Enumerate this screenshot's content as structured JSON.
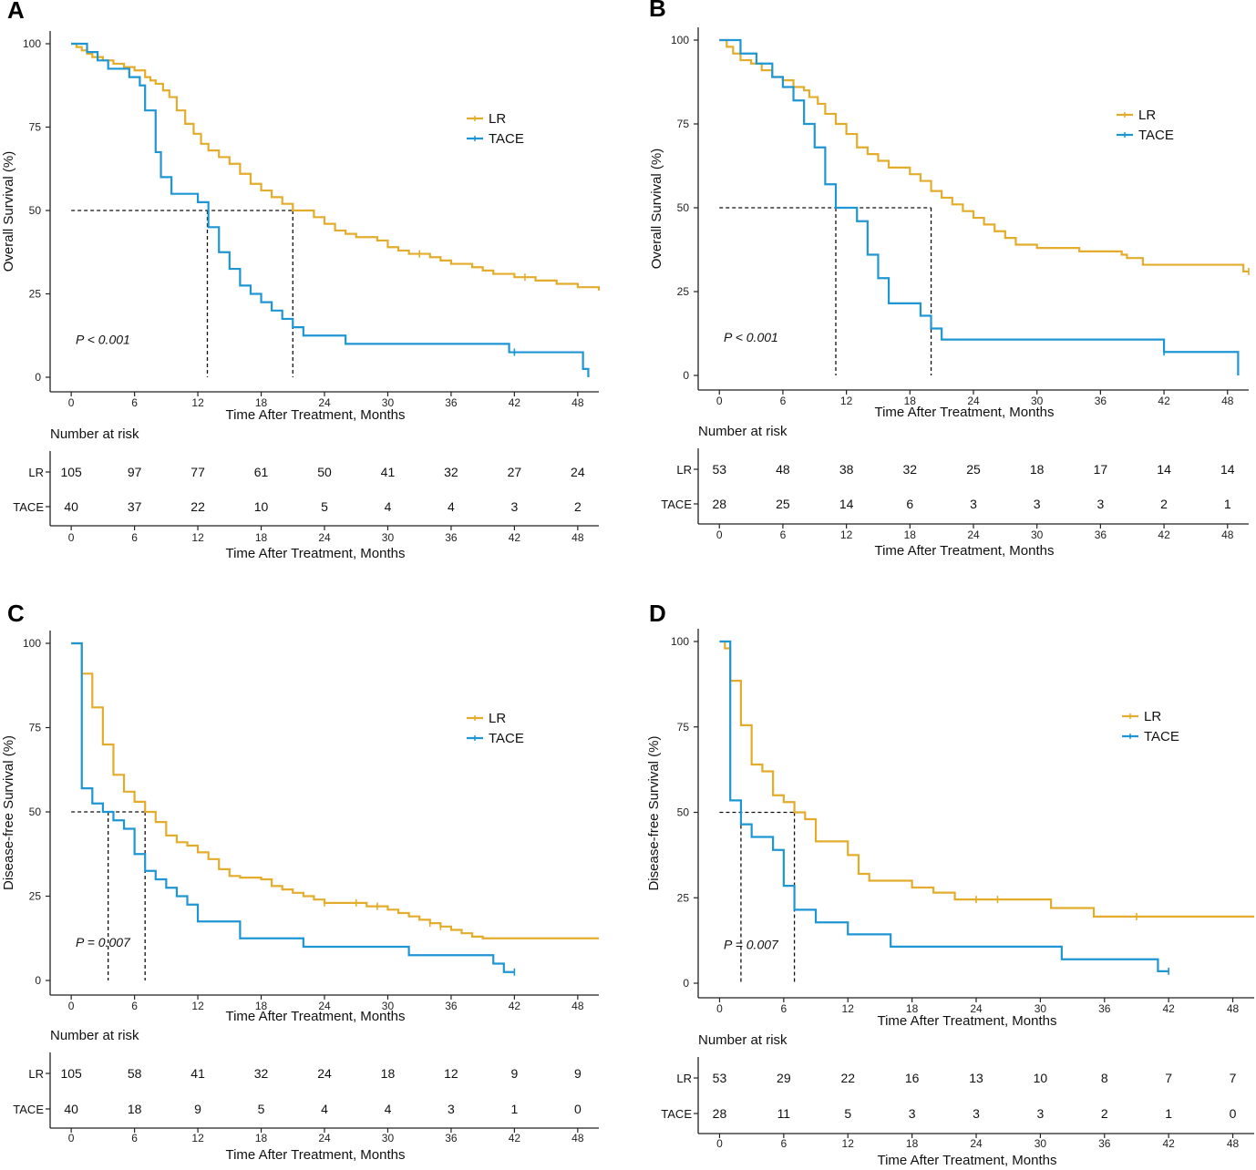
{
  "figure": {
    "colors": {
      "LR": "#E3AC2B",
      "TACE": "#1F96D4",
      "axis": "#222222",
      "dash": "#111111"
    },
    "risk_title": "Number at risk",
    "x_axis_label": "Time After Treatment, Months"
  },
  "chart_data": [
    {
      "panel": "A",
      "type": "line",
      "step": true,
      "ylabel": "Overall Survival (%)",
      "xlabel": "Time After Treatment, Months",
      "xlim": [
        -2,
        50
      ],
      "ylim": [
        0,
        100
      ],
      "xticks": [
        0,
        6,
        12,
        18,
        24,
        30,
        36,
        42,
        48
      ],
      "yticks": [
        0,
        25,
        50,
        75,
        100
      ],
      "legend": [
        "LR",
        "TACE"
      ],
      "legend_position": "top-right",
      "pvalue": "P < 0.001",
      "median_line_y": 50,
      "medians": [
        12.9,
        21
      ],
      "series": [
        {
          "name": "LR",
          "x": [
            0,
            0.5,
            1,
            1.5,
            2,
            3,
            4,
            5,
            6,
            7,
            7.5,
            8,
            8.7,
            9.3,
            10,
            10.8,
            11.6,
            12.3,
            13,
            14,
            15,
            16,
            17,
            18,
            19,
            20,
            21,
            22,
            23,
            24,
            25,
            26,
            27,
            28,
            29,
            30,
            31,
            32,
            33,
            34,
            35,
            36,
            37,
            38,
            39,
            40,
            41,
            42,
            43,
            44,
            45,
            46,
            47,
            48,
            49,
            50
          ],
          "y": [
            100,
            99,
            98,
            97,
            96,
            95,
            94,
            93,
            92,
            90,
            89,
            88,
            86,
            84,
            80,
            76,
            73,
            70,
            68,
            66,
            64,
            61,
            58,
            56,
            54,
            52,
            50,
            50,
            48,
            46,
            44,
            43,
            42,
            42,
            41,
            39,
            38,
            37,
            37,
            36,
            35,
            34,
            34,
            33,
            32,
            31,
            31,
            30,
            30,
            29,
            29,
            28,
            28,
            27,
            27,
            26
          ],
          "censored_x": [
            33,
            43
          ]
        },
        {
          "name": "TACE",
          "x": [
            0,
            1.5,
            2.5,
            3.5,
            5.5,
            6.5,
            7,
            8,
            8.5,
            9.5,
            10.5,
            12,
            13,
            14,
            15,
            16,
            17,
            18,
            19,
            20,
            21,
            22,
            26,
            36,
            41.5,
            46,
            48.5,
            49
          ],
          "y": [
            100,
            97.5,
            95,
            92.5,
            90,
            87.5,
            80,
            67.5,
            60,
            55,
            55,
            52.5,
            45,
            37.5,
            32.5,
            27.5,
            25,
            22.5,
            20,
            17.5,
            15,
            12.5,
            10,
            10,
            7.5,
            7.5,
            2.5,
            0
          ],
          "censored_x": [
            42
          ]
        }
      ],
      "risk_table": {
        "times": [
          0,
          6,
          12,
          18,
          24,
          30,
          36,
          42,
          48
        ],
        "rows": [
          {
            "label": "LR",
            "values": [
              "105",
              "97",
              "77",
              "61",
              "50",
              "41",
              "32",
              "27",
              "24"
            ]
          },
          {
            "label": "TACE",
            "values": [
              "40",
              "37",
              "22",
              "10",
              "5",
              "4",
              "4",
              "3",
              "2"
            ]
          }
        ]
      }
    },
    {
      "panel": "B",
      "type": "line",
      "step": true,
      "ylabel": "Overall Survival (%)",
      "xlabel": "Time After Treatment, Months",
      "xlim": [
        -2,
        50
      ],
      "ylim": [
        0,
        100
      ],
      "xticks": [
        0,
        6,
        12,
        18,
        24,
        30,
        36,
        42,
        48
      ],
      "yticks": [
        0,
        25,
        50,
        75,
        100
      ],
      "legend": [
        "LR",
        "TACE"
      ],
      "legend_position": "top-right",
      "pvalue": "P < 0.001",
      "median_line_y": 50,
      "medians": [
        11,
        20
      ],
      "series": [
        {
          "name": "LR",
          "x": [
            0,
            0.7,
            1.3,
            2,
            3,
            4,
            5,
            6,
            7,
            8,
            8.5,
            9.3,
            10,
            11,
            12,
            13,
            14,
            15,
            16,
            17,
            18,
            19,
            20,
            21,
            22,
            23,
            24,
            25,
            26,
            27,
            28,
            30,
            34,
            38,
            38.5,
            40,
            44,
            48,
            49.5,
            50
          ],
          "y": [
            100,
            98,
            96,
            94,
            93,
            91,
            89,
            88,
            86,
            85,
            83,
            81,
            78,
            75,
            72,
            68,
            66,
            64,
            62,
            62,
            60,
            58,
            55,
            53,
            51,
            49,
            47,
            45,
            43,
            41,
            39,
            38,
            37,
            36,
            35,
            33,
            33,
            33,
            31,
            31
          ],
          "censored_x": [
            50
          ]
        },
        {
          "name": "TACE",
          "x": [
            0,
            2,
            3.5,
            5,
            6,
            7,
            8,
            9,
            10,
            11,
            12,
            13,
            14,
            15,
            16,
            17,
            18,
            19,
            20,
            21,
            30,
            34,
            40,
            42,
            48,
            49
          ],
          "y": [
            100,
            96,
            93,
            89,
            86,
            82,
            75,
            68,
            57,
            50,
            50,
            46,
            36,
            29,
            21.5,
            21.5,
            21.5,
            17.8,
            14,
            10.7,
            10.7,
            10.7,
            10.7,
            7,
            7,
            0
          ],
          "censored_x": [
            42
          ]
        }
      ],
      "risk_table": {
        "times": [
          0,
          6,
          12,
          18,
          24,
          30,
          36,
          42,
          48
        ],
        "rows": [
          {
            "label": "LR",
            "values": [
              "53",
              "48",
              "38",
              "32",
              "25",
              "18",
              "17",
              "14",
              "14"
            ]
          },
          {
            "label": "TACE",
            "values": [
              "28",
              "25",
              "14",
              "6",
              "3",
              "3",
              "3",
              "2",
              "1"
            ]
          }
        ]
      }
    },
    {
      "panel": "C",
      "type": "line",
      "step": true,
      "ylabel": "Disease-free Survival (%)",
      "xlabel": "Time After Treatment, Months",
      "xlim": [
        -2,
        50
      ],
      "ylim": [
        0,
        100
      ],
      "xticks": [
        0,
        6,
        12,
        18,
        24,
        30,
        36,
        42,
        48
      ],
      "yticks": [
        0,
        25,
        50,
        75,
        100
      ],
      "legend": [
        "LR",
        "TACE"
      ],
      "legend_position": "top-right",
      "pvalue": "P = 0.007",
      "median_line_y": 50,
      "medians": [
        3.5,
        7
      ],
      "series": [
        {
          "name": "LR",
          "x": [
            0,
            1,
            2,
            3,
            4,
            5,
            6,
            7,
            8,
            9,
            10,
            11,
            12,
            13,
            14,
            15,
            16,
            17,
            18,
            19,
            20,
            21,
            22,
            23,
            24,
            26,
            27,
            28,
            29,
            30,
            31,
            32,
            33,
            34,
            35,
            36,
            37,
            38,
            39,
            40,
            41,
            42,
            44,
            48,
            50
          ],
          "y": [
            100,
            91,
            81,
            70,
            61,
            56,
            53,
            50,
            47,
            43,
            41,
            40,
            38,
            36,
            33,
            31,
            30.5,
            30.5,
            30,
            28,
            27,
            26,
            25,
            24,
            23,
            23,
            23,
            22,
            22,
            21,
            20,
            19,
            18,
            17,
            16,
            15,
            14,
            13,
            12.5,
            12.5,
            12.5,
            12.5,
            12.5,
            12.5,
            12.5
          ],
          "censored_x": [
            24,
            27,
            29,
            34,
            35
          ]
        },
        {
          "name": "TACE",
          "x": [
            0,
            1,
            2,
            3,
            4,
            5,
            6,
            7,
            8,
            9,
            10,
            11,
            12,
            16,
            22,
            32,
            40,
            41,
            42
          ],
          "y": [
            100,
            57,
            52.5,
            50,
            47.5,
            45,
            37.5,
            32.5,
            30,
            27.5,
            25,
            22.5,
            17.5,
            12.5,
            10,
            7.5,
            5,
            2.5,
            2.5
          ],
          "censored_x": [
            42
          ]
        }
      ],
      "risk_table": {
        "times": [
          0,
          6,
          12,
          18,
          24,
          30,
          36,
          42,
          48
        ],
        "rows": [
          {
            "label": "LR",
            "values": [
              "105",
              "58",
              "41",
              "32",
              "24",
              "18",
              "12",
              "9",
              "9"
            ]
          },
          {
            "label": "TACE",
            "values": [
              "40",
              "18",
              "9",
              "5",
              "4",
              "4",
              "3",
              "1",
              "0"
            ]
          }
        ]
      }
    },
    {
      "panel": "D",
      "type": "line",
      "step": true,
      "ylabel": "Disease-free Survival (%)",
      "xlabel": "Time After Treatment, Months",
      "xlim": [
        -2,
        50
      ],
      "ylim": [
        0,
        100
      ],
      "xticks": [
        0,
        6,
        12,
        18,
        24,
        30,
        36,
        42,
        48
      ],
      "yticks": [
        0,
        25,
        50,
        75,
        100
      ],
      "legend": [
        "LR",
        "TACE"
      ],
      "legend_position": "top-right",
      "pvalue": "P = 0.007",
      "median_line_y": 50,
      "medians": [
        2,
        7
      ],
      "series": [
        {
          "name": "LR",
          "x": [
            0,
            0.5,
            1,
            2,
            3,
            4,
            5,
            6,
            7,
            8,
            9,
            12,
            13,
            14,
            18,
            20,
            22,
            24,
            26,
            28,
            31,
            34,
            35,
            38,
            42,
            48,
            50
          ],
          "y": [
            100,
            98,
            88.5,
            75.5,
            64,
            62,
            55,
            53,
            50,
            48,
            41.5,
            37.5,
            32,
            30,
            28,
            26.5,
            24.5,
            24.5,
            24.5,
            24.5,
            22,
            22,
            19.5,
            19.5,
            19.5,
            19.5,
            19.5
          ],
          "censored_x": [
            24,
            26,
            39
          ]
        },
        {
          "name": "TACE",
          "x": [
            0,
            1,
            2,
            3,
            4,
            5,
            6,
            7,
            9,
            12,
            16,
            22,
            32,
            41,
            42
          ],
          "y": [
            100,
            53.5,
            46.5,
            42.8,
            42.8,
            39,
            28.5,
            21.5,
            17.8,
            14.3,
            10.7,
            10.7,
            7,
            3.5,
            3.5
          ],
          "censored_x": [
            42
          ]
        }
      ],
      "risk_table": {
        "times": [
          0,
          6,
          12,
          18,
          24,
          30,
          36,
          42,
          48
        ],
        "rows": [
          {
            "label": "LR",
            "values": [
              "53",
              "29",
              "22",
              "16",
              "13",
              "10",
              "8",
              "7",
              "7"
            ]
          },
          {
            "label": "TACE",
            "values": [
              "28",
              "11",
              "5",
              "3",
              "3",
              "3",
              "2",
              "1",
              "0"
            ]
          }
        ]
      }
    }
  ]
}
